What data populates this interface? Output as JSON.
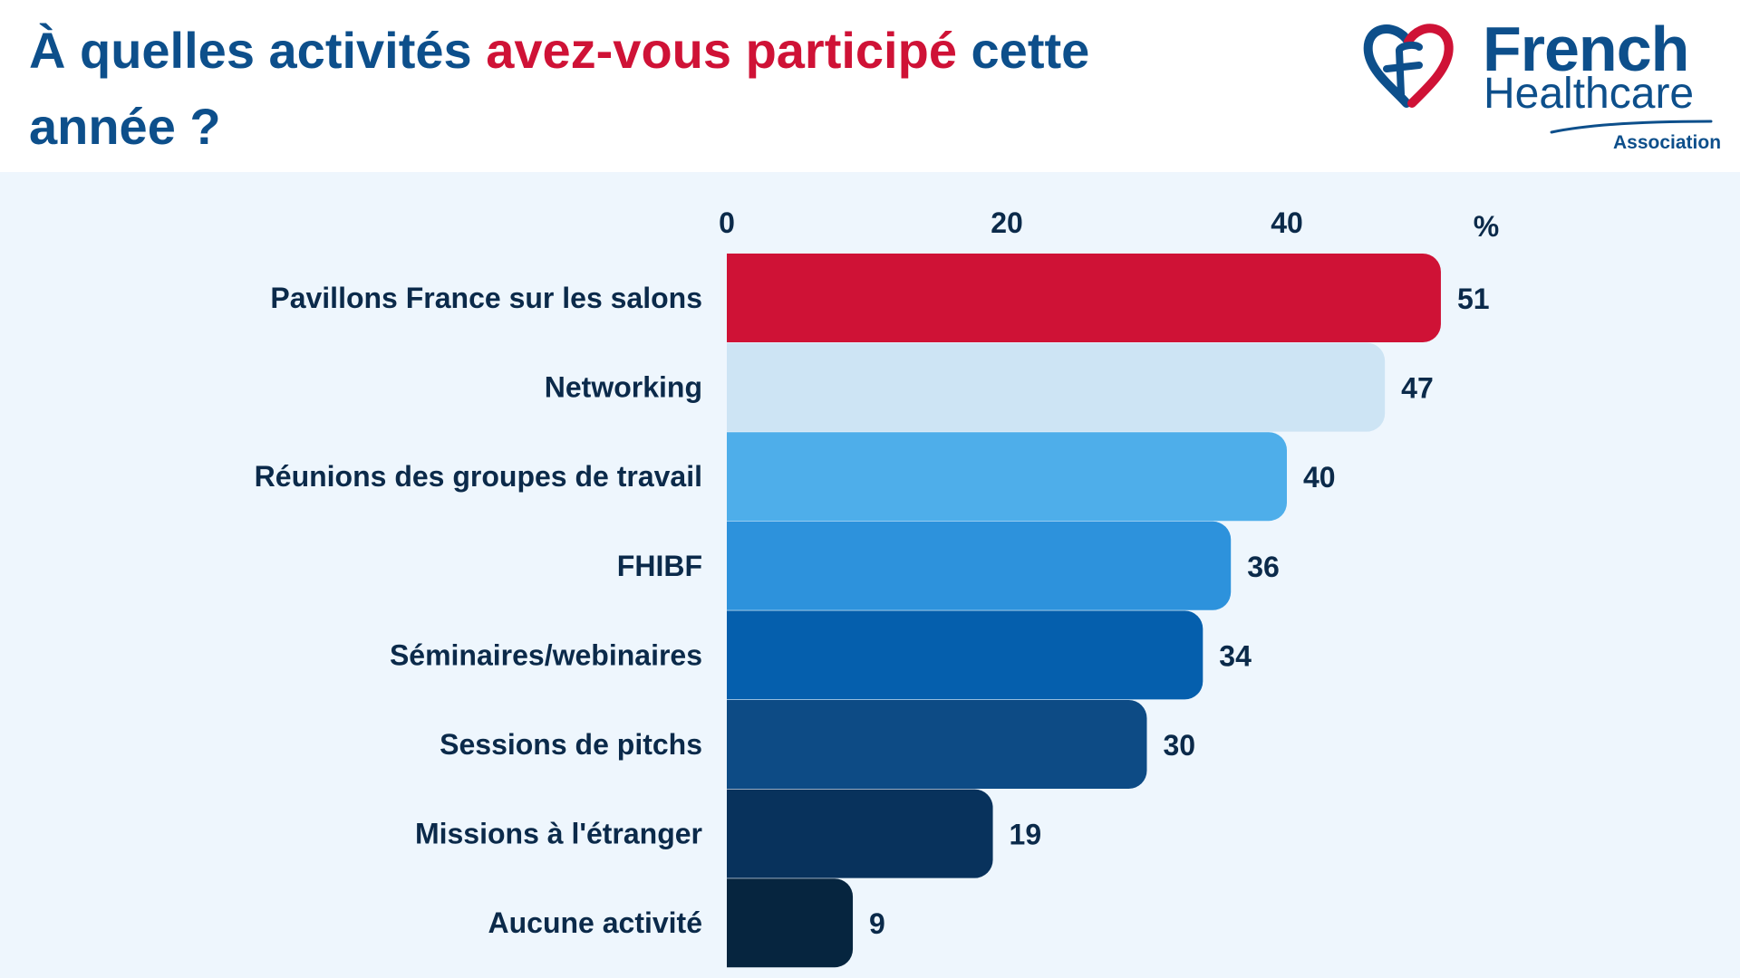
{
  "header": {
    "title_part1": "À quelles activités ",
    "title_accent": "avez-vous participé",
    "title_part2": " cette année ?"
  },
  "logo": {
    "line1": "French",
    "line2": "Healthcare",
    "line3": "Association",
    "colors": {
      "blue": "#0d4f8b",
      "red": "#cf1236"
    }
  },
  "chart_data": {
    "type": "bar",
    "orientation": "horizontal",
    "title": "À quelles activités avez-vous participé cette année ?",
    "unit": "%",
    "categories": [
      "Pavillons France sur les salons",
      "Networking",
      "Réunions des groupes de travail",
      "FHIBF",
      "Séminaires/webinaires",
      "Sessions de pitchs",
      "Missions à l'étranger",
      "Aucune activité"
    ],
    "values": [
      51,
      47,
      40,
      36,
      34,
      30,
      19,
      9
    ],
    "colors": [
      "#cf1236",
      "#cde4f4",
      "#4eaeea",
      "#2d92dc",
      "#055fad",
      "#0d4b85",
      "#08325c",
      "#06253f"
    ],
    "xticks": [
      0,
      20,
      40
    ],
    "xlim": [
      0,
      52
    ],
    "axis_position": "top",
    "grid": false,
    "legend": "none"
  }
}
